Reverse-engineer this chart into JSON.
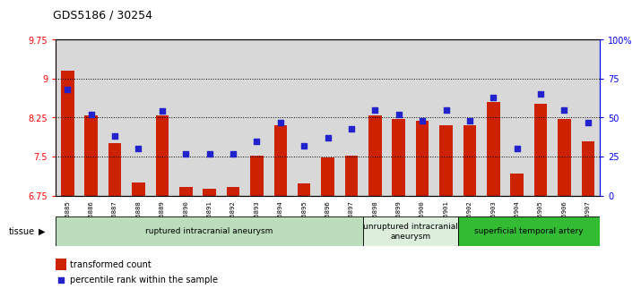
{
  "title": "GDS5186 / 30254",
  "samples": [
    "GSM1306885",
    "GSM1306886",
    "GSM1306887",
    "GSM1306888",
    "GSM1306889",
    "GSM1306890",
    "GSM1306891",
    "GSM1306892",
    "GSM1306893",
    "GSM1306894",
    "GSM1306895",
    "GSM1306896",
    "GSM1306897",
    "GSM1306898",
    "GSM1306899",
    "GSM1306900",
    "GSM1306901",
    "GSM1306902",
    "GSM1306903",
    "GSM1306904",
    "GSM1306905",
    "GSM1306906",
    "GSM1306907"
  ],
  "bar_values": [
    9.15,
    8.3,
    7.75,
    7.0,
    8.3,
    6.92,
    6.88,
    6.92,
    7.52,
    8.1,
    6.98,
    7.48,
    7.52,
    8.3,
    8.22,
    8.18,
    8.1,
    8.1,
    8.55,
    7.18,
    8.52,
    8.22,
    7.8
  ],
  "dot_values_pct": [
    68,
    52,
    38,
    30,
    54,
    27,
    27,
    27,
    35,
    47,
    32,
    37,
    43,
    55,
    52,
    48,
    55,
    48,
    63,
    30,
    65,
    55,
    47
  ],
  "ylim_left": [
    6.75,
    9.75
  ],
  "ylim_right": [
    0,
    100
  ],
  "yticks_left": [
    6.75,
    7.5,
    8.25,
    9.0,
    9.75
  ],
  "ytick_labels_left": [
    "6.75",
    "7.5",
    "8.25",
    "9",
    "9.75"
  ],
  "yticks_right": [
    0,
    25,
    50,
    75,
    100
  ],
  "ytick_labels_right": [
    "0",
    "25",
    "50",
    "75",
    "100%"
  ],
  "hlines": [
    7.5,
    8.25,
    9.0
  ],
  "bar_color": "#CC2200",
  "dot_color": "#2222CC",
  "col_bg_odd": "#D8D8D8",
  "col_bg_even": "#D8D8D8",
  "tissue_groups": [
    {
      "label": "ruptured intracranial aneurysm",
      "start": 0,
      "end": 13,
      "color": "#BBDDBB"
    },
    {
      "label": "unruptured intracranial\naneurysm",
      "start": 13,
      "end": 17,
      "color": "#DDEEDD"
    },
    {
      "label": "superficial temporal artery",
      "start": 17,
      "end": 23,
      "color": "#33BB33"
    }
  ],
  "legend_bar_label": "transformed count",
  "legend_dot_label": "percentile rank within the sample",
  "tissue_label": "tissue"
}
